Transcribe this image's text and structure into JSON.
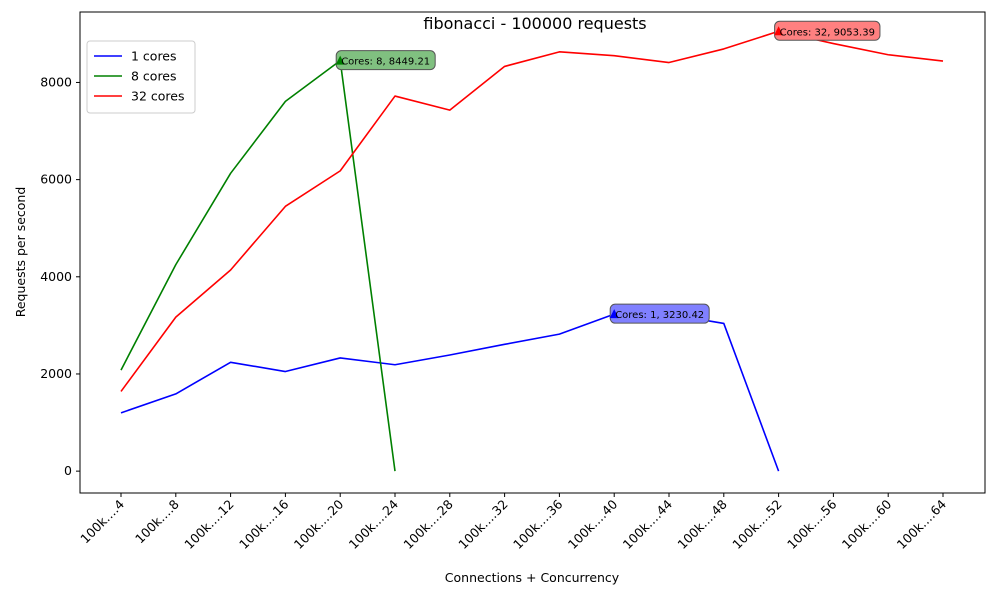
{
  "chart_data": {
    "type": "line",
    "title": "fibonacci - 100000 requests",
    "xlabel": "Connections + Concurrency",
    "ylabel": "Requests per second",
    "categories": [
      "100k….4",
      "100k….8",
      "100k….12",
      "100k….16",
      "100k….20",
      "100k….24",
      "100k….28",
      "100k….32",
      "100k….36",
      "100k….40",
      "100k….44",
      "100k….48",
      "100k….52",
      "100k….56",
      "100k….60",
      "100k….64"
    ],
    "ylim": [
      -450,
      9450
    ],
    "yticks": [
      0,
      2000,
      4000,
      6000,
      8000
    ],
    "grid": false,
    "legend_position": "upper-left",
    "series": [
      {
        "name": "1 cores",
        "color": "#0000ff",
        "values": [
          1200,
          1590,
          2240,
          2050,
          2330,
          2190,
          2390,
          2610,
          2820,
          3230.42,
          3230,
          3040,
          0,
          null,
          null,
          null
        ],
        "annotation": {
          "index": 9,
          "text": "Cores: 1, 3230.42",
          "box_color": "#8080ff"
        }
      },
      {
        "name": "8 cores",
        "color": "#008000",
        "values": [
          2080,
          4250,
          6130,
          7610,
          8449.21,
          0,
          null,
          null,
          null,
          null,
          null,
          null,
          null,
          null,
          null,
          null
        ],
        "annotation": {
          "index": 4,
          "text": "Cores: 8, 8449.21",
          "box_color": "#80c080"
        }
      },
      {
        "name": "32 cores",
        "color": "#ff0000",
        "values": [
          1640,
          3170,
          4140,
          5450,
          6180,
          7720,
          7430,
          8330,
          8630,
          8550,
          8410,
          8690,
          9053.39,
          8800,
          8570,
          8440
        ],
        "annotation": {
          "index": 12,
          "text": "Cores: 32, 9053.39",
          "box_color": "#ff8080"
        }
      }
    ]
  }
}
